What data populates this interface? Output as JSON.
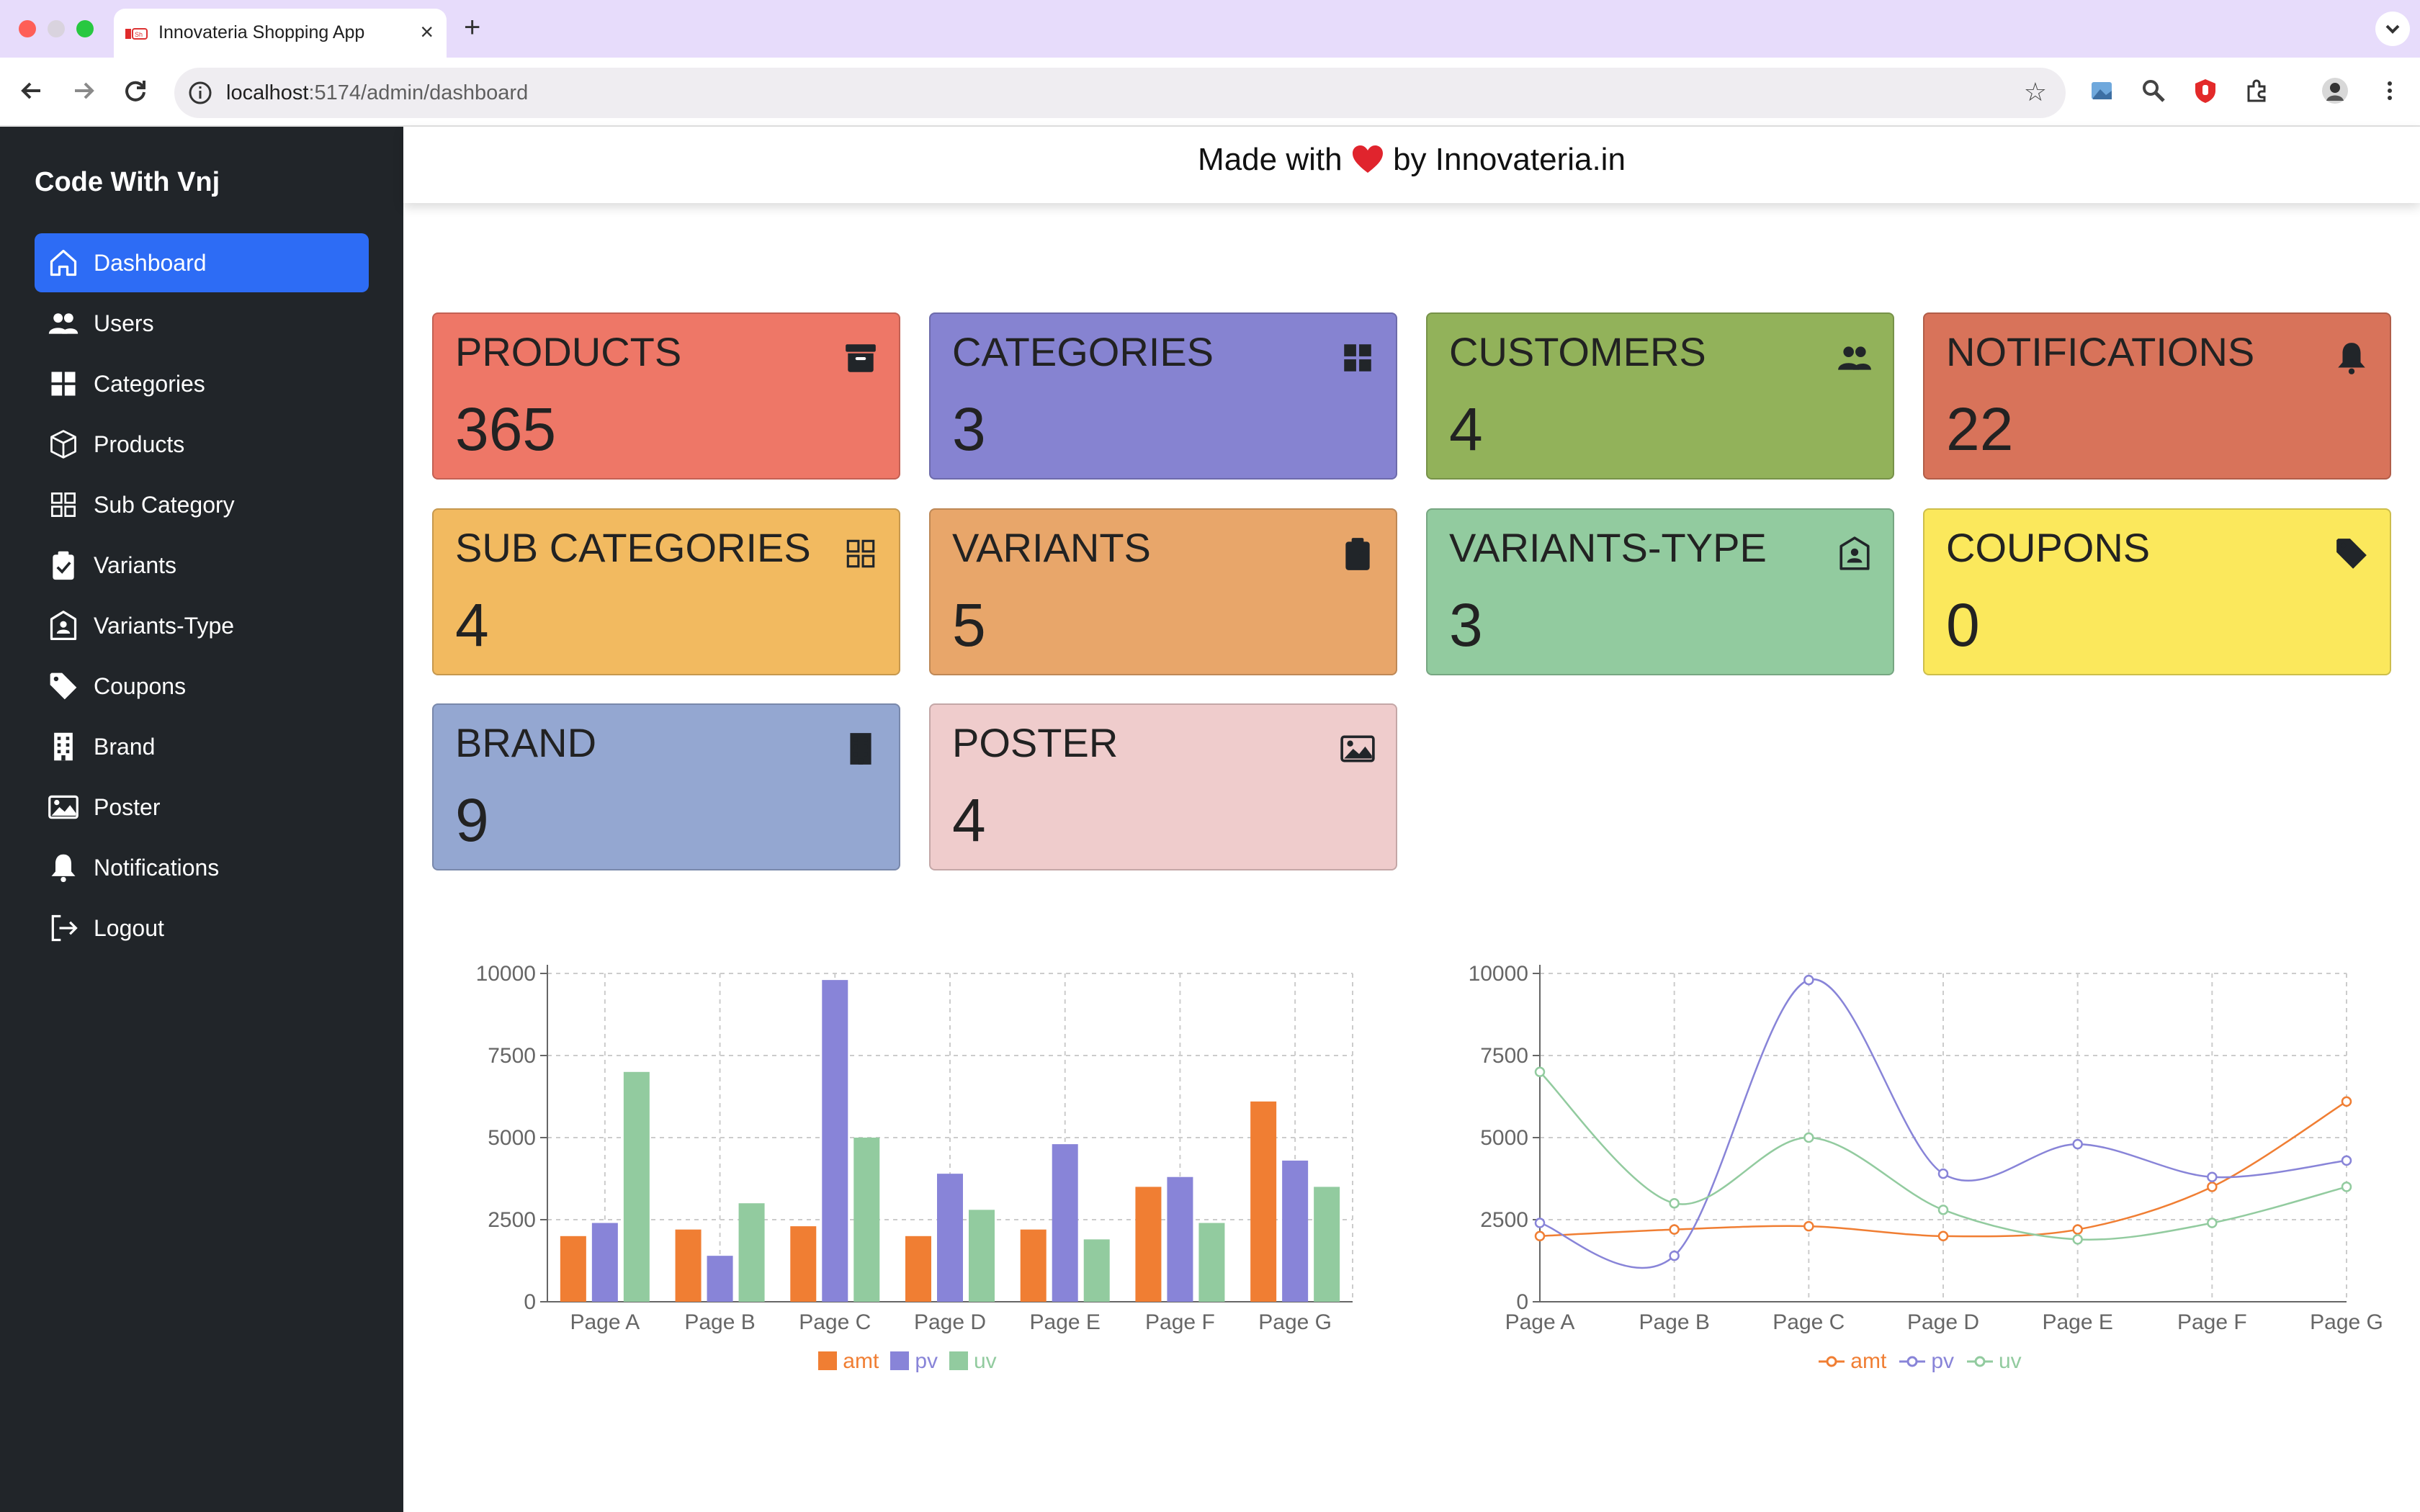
{
  "browser": {
    "tab_title": "Innovateria Shopping App",
    "url_host": "localhost",
    "url_path": ":5174/admin/dashboard",
    "new_tab_symbol": "+",
    "close_symbol": "×"
  },
  "sidebar": {
    "brand": "Code With Vnj",
    "items": [
      {
        "label": "Dashboard",
        "icon": "house-icon",
        "active": true
      },
      {
        "label": "Users",
        "icon": "people-icon"
      },
      {
        "label": "Categories",
        "icon": "grid-filled-icon"
      },
      {
        "label": "Products",
        "icon": "box-icon"
      },
      {
        "label": "Sub Category",
        "icon": "grid-outline-icon"
      },
      {
        "label": "Variants",
        "icon": "clipboard-check-icon"
      },
      {
        "label": "Variants-Type",
        "icon": "badge-icon"
      },
      {
        "label": "Coupons",
        "icon": "tag-icon"
      },
      {
        "label": "Brand",
        "icon": "building-icon"
      },
      {
        "label": "Poster",
        "icon": "image-icon"
      },
      {
        "label": "Notifications",
        "icon": "bell-icon"
      },
      {
        "label": "Logout",
        "icon": "logout-icon"
      }
    ]
  },
  "header": {
    "made_with": "Made with",
    "by_text": "by Innovateria.in"
  },
  "cards": [
    {
      "title": "PRODUCTS",
      "value": "365",
      "color": "#ee7767",
      "icon": "archive-icon"
    },
    {
      "title": "CATEGORIES",
      "value": "3",
      "color": "#8683d1",
      "icon": "grid-filled-icon"
    },
    {
      "title": "CUSTOMERS",
      "value": "4",
      "color": "#92b25a",
      "icon": "people-icon"
    },
    {
      "title": "NOTIFICATIONS",
      "value": "22",
      "color": "#d8735a",
      "icon": "bell-icon"
    },
    {
      "title": "SUB CATEGORIES",
      "value": "4",
      "color": "#f2ba60",
      "icon": "grid-outline-icon"
    },
    {
      "title": "VARIANTS",
      "value": "5",
      "color": "#e8a66a",
      "icon": "clipboard-check-icon"
    },
    {
      "title": "VARIANTS-TYPE",
      "value": "3",
      "color": "#92cb9f",
      "icon": "badge-icon"
    },
    {
      "title": "COUPONS",
      "value": "0",
      "color": "#fbe85c",
      "icon": "tag-icon"
    },
    {
      "title": "BRAND",
      "value": "9",
      "color": "#94a7d1",
      "icon": "building-icon"
    },
    {
      "title": "POSTER",
      "value": "4",
      "color": "#efcccc",
      "icon": "image-icon"
    }
  ],
  "chart_data": [
    {
      "type": "bar",
      "categories": [
        "Page A",
        "Page B",
        "Page C",
        "Page D",
        "Page E",
        "Page F",
        "Page G"
      ],
      "series": [
        {
          "name": "amt",
          "color": "#f07e33",
          "values": [
            2000,
            2200,
            2300,
            2000,
            2200,
            3500,
            6100
          ]
        },
        {
          "name": "pv",
          "color": "#8884d8",
          "values": [
            2400,
            1400,
            9800,
            3900,
            4800,
            3800,
            4300
          ]
        },
        {
          "name": "uv",
          "color": "#92cb9f",
          "values": [
            7000,
            3000,
            5000,
            2800,
            1900,
            2400,
            3500
          ]
        }
      ],
      "yticks": [
        "0",
        "2500",
        "5000",
        "7500",
        "10000"
      ],
      "ylim": [
        0,
        10000
      ],
      "grid": true,
      "legend": "bottom"
    },
    {
      "type": "line",
      "categories": [
        "Page A",
        "Page B",
        "Page C",
        "Page D",
        "Page E",
        "Page F",
        "Page G"
      ],
      "series": [
        {
          "name": "amt",
          "color": "#f07e33",
          "values": [
            2000,
            2200,
            2300,
            2000,
            2200,
            3500,
            6100
          ]
        },
        {
          "name": "pv",
          "color": "#8884d8",
          "values": [
            2400,
            1400,
            9800,
            3900,
            4800,
            3800,
            4300
          ]
        },
        {
          "name": "uv",
          "color": "#92cb9f",
          "values": [
            7000,
            3000,
            5000,
            2800,
            1900,
            2400,
            3500
          ]
        }
      ],
      "yticks": [
        "0",
        "2500",
        "5000",
        "7500",
        "10000"
      ],
      "ylim": [
        0,
        10000
      ],
      "grid": true,
      "legend": "bottom"
    }
  ]
}
